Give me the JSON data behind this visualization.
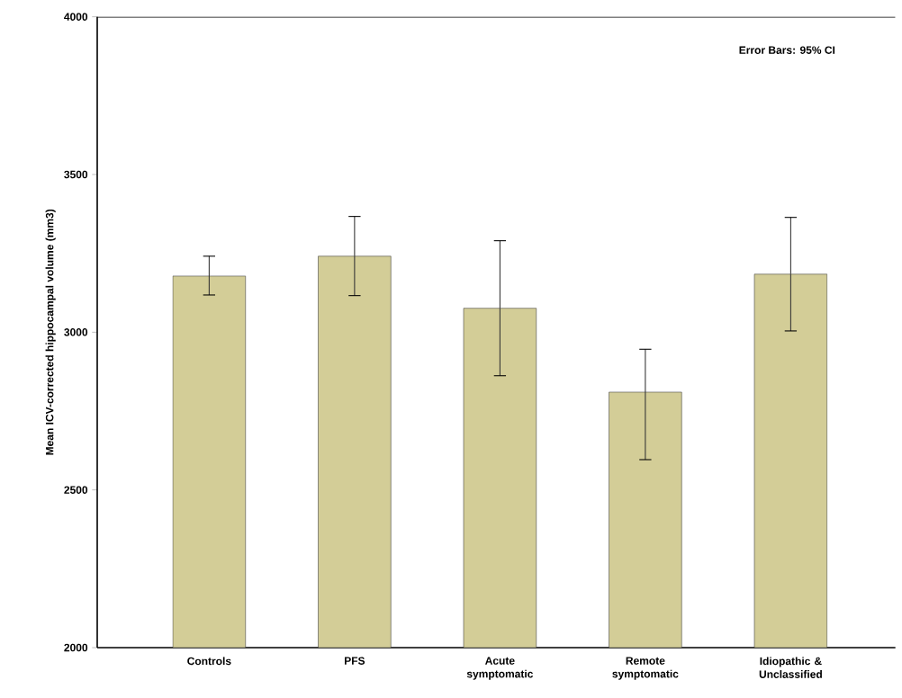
{
  "chart_data": {
    "type": "bar",
    "ylabel": "Mean ICV-corrected hippocampal volume (mm3)",
    "categories": [
      "Controls",
      "PFS",
      "Acute symptomatic",
      "Remote symptomatic",
      "Idiopathic & Unclassified"
    ],
    "values": [
      3178,
      3241,
      3076,
      2810,
      3184
    ],
    "errors": [
      [
        3118,
        3241
      ],
      [
        3116,
        3367
      ],
      [
        2862,
        3290
      ],
      [
        2596,
        2946
      ],
      [
        3004,
        3364
      ]
    ],
    "color": "#d3cd97",
    "ylim": [
      2000,
      4000
    ],
    "yticks": [
      2000,
      2500,
      3000,
      3500,
      4000
    ],
    "annotations": [
      "Error Bars: 95% CI"
    ]
  }
}
